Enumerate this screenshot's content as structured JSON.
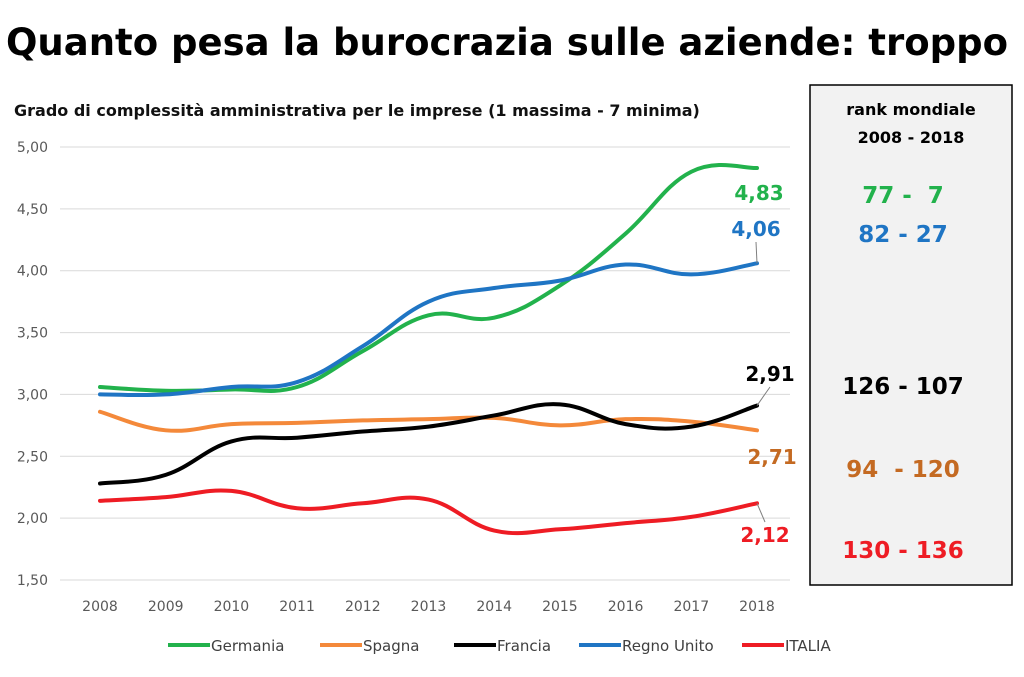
{
  "chart_data": {
    "type": "line",
    "title": "Quanto pesa la burocrazia sulle aziende: troppo",
    "subtitle": "Grado di complessità amministrativa per le imprese (1 massima - 7 minima)",
    "x": [
      "2008",
      "2009",
      "2010",
      "2011",
      "2012",
      "2013",
      "2014",
      "2015",
      "2016",
      "2017",
      "2018"
    ],
    "ylim": [
      1.5,
      5.0
    ],
    "yticks": [
      "1,50",
      "2,00",
      "2,50",
      "3,00",
      "3,50",
      "4,00",
      "4,50",
      "5,00"
    ],
    "grid": true,
    "legend_position": "bottom",
    "series": [
      {
        "name": "Germania",
        "color": "#22b24c",
        "values": [
          3.06,
          3.03,
          3.04,
          3.06,
          3.35,
          3.64,
          3.62,
          3.88,
          4.3,
          4.8,
          4.83
        ],
        "end_label": "4,83",
        "rank": "77 -  7"
      },
      {
        "name": "Spagna",
        "color": "#f4893a",
        "values": [
          2.86,
          2.71,
          2.76,
          2.77,
          2.79,
          2.8,
          2.81,
          2.75,
          2.8,
          2.78,
          2.71
        ],
        "end_label": "2,71",
        "rank": "94  - 120"
      },
      {
        "name": "Francia",
        "color": "#000000",
        "values": [
          2.28,
          2.35,
          2.62,
          2.65,
          2.7,
          2.74,
          2.83,
          2.92,
          2.76,
          2.74,
          2.91
        ],
        "end_label": "2,91",
        "rank": "126 - 107"
      },
      {
        "name": "Regno Unito",
        "color": "#1f75c4",
        "values": [
          3.0,
          3.0,
          3.06,
          3.1,
          3.39,
          3.75,
          3.86,
          3.92,
          4.05,
          3.97,
          4.06
        ],
        "end_label": "4,06",
        "rank": "82 - 27"
      },
      {
        "name": "ITALIA",
        "color": "#ee1c24",
        "values": [
          2.14,
          2.17,
          2.22,
          2.08,
          2.12,
          2.15,
          1.9,
          1.91,
          1.96,
          2.01,
          2.12
        ],
        "end_label": "2,12",
        "rank": "130 - 136"
      }
    ],
    "rank_panel": {
      "heading_line1": "rank mondiale",
      "heading_line2": "2008 - 2018"
    },
    "end_label_colors": {
      "Germania": "#22b24c",
      "Spagna": "#c46a22",
      "Francia": "#000000",
      "Regno Unito": "#1f75c4",
      "ITALIA": "#ee1c24"
    }
  }
}
